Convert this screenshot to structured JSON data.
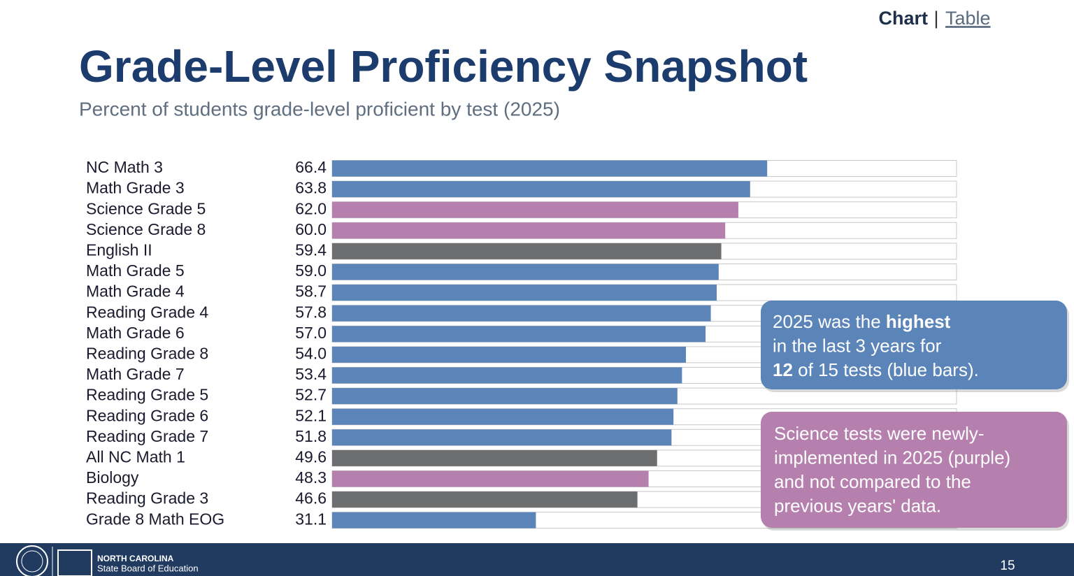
{
  "header": {
    "tabs": [
      {
        "text": "Chart",
        "active": true
      },
      {
        "text": "Table",
        "active": false
      }
    ],
    "separator": "|"
  },
  "chart_data": {
    "type": "bar",
    "orientation": "horizontal",
    "title": "Grade-Level Proficiency Snapshot",
    "subtitle": "Percent of students grade-level proficient by test (2025)",
    "categories": [
      "NC Math 3",
      "Math Grade 3",
      "Science Grade 5",
      "Science Grade 8",
      "English II",
      "Math Grade 5",
      "Math Grade 4",
      "Reading Grade 4",
      "Math Grade 6",
      "Reading Grade 8",
      "Math Grade 7",
      "Reading Grade 5",
      "Reading Grade 6",
      "Reading Grade 7",
      "All NC Math 1",
      "Biology",
      "Reading Grade 3",
      "Grade 8 Math EOG"
    ],
    "values": [
      66.4,
      63.8,
      62.0,
      60.0,
      59.4,
      59.0,
      58.7,
      57.8,
      57.0,
      54.0,
      53.4,
      52.7,
      52.1,
      51.8,
      49.6,
      48.3,
      46.6,
      31.1
    ],
    "value_labels": [
      "66.4",
      "63.8",
      "62.0",
      "60.0",
      "59.4",
      "59.0",
      "58.7",
      "57.8",
      "57.0",
      "54.0",
      "53.4",
      "52.7",
      "52.1",
      "51.8",
      "49.6",
      "48.3",
      "46.6",
      "31.1"
    ],
    "colors": [
      "#5b84b8",
      "#5b84b8",
      "#b57fae",
      "#b57fae",
      "#6d6e70",
      "#5b84b8",
      "#5b84b8",
      "#5b84b8",
      "#5b84b8",
      "#5b84b8",
      "#5b84b8",
      "#5b84b8",
      "#5b84b8",
      "#5b84b8",
      "#6d6e70",
      "#b57fae",
      "#6d6e70",
      "#5b84b8"
    ],
    "annotations": [
      {
        "color": "#5b84b8",
        "lines": [
          [
            {
              "text": "2025 was the "
            },
            {
              "text": "highest",
              "bold": true
            }
          ],
          [
            {
              "text": "in the last 3 years for"
            }
          ],
          [
            {
              "text": "12",
              "bold": true
            },
            {
              "text": " of 15 tests (blue bars)."
            }
          ]
        ]
      },
      {
        "color": "#b57fae",
        "lines": [
          [
            {
              "text": "Science tests were newly-"
            }
          ],
          [
            {
              "text": "implemented in 2025 (purple)"
            }
          ],
          [
            {
              "text": "and not compared to the"
            }
          ],
          [
            {
              "text": "previous years' data."
            }
          ]
        ]
      }
    ]
  },
  "footer": {
    "org": "NORTH CAROLINA",
    "suborg": "State Board of Education",
    "page": "15"
  }
}
